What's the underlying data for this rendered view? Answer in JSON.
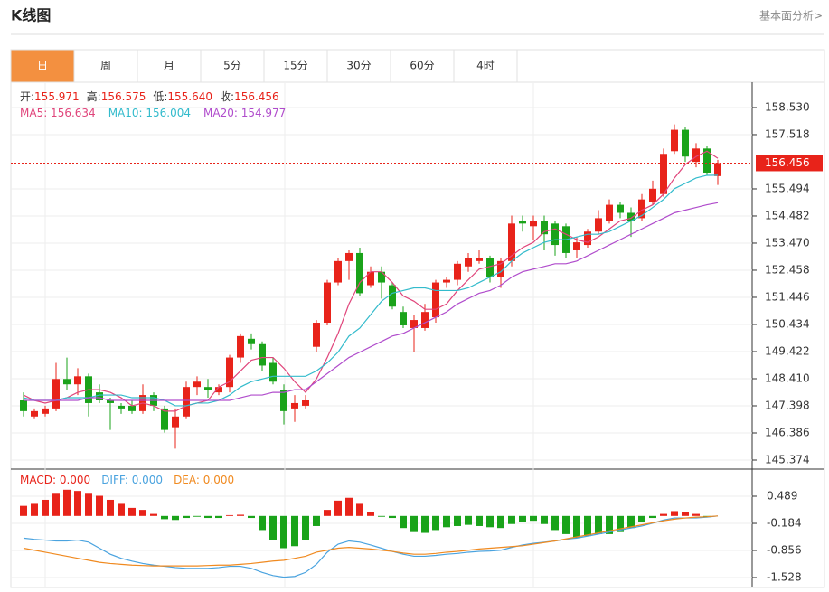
{
  "header": {
    "title": "K线图",
    "link": "基本面分析>"
  },
  "tabs": [
    "日",
    "周",
    "月",
    "5分",
    "15分",
    "30分",
    "60分",
    "4时"
  ],
  "active_tab": 0,
  "chart_data": [
    {
      "type": "candlestick",
      "info": [
        {
          "label": "开:",
          "text": "155.971"
        },
        {
          "label": "高:",
          "text": "156.575"
        },
        {
          "label": "低:",
          "text": "155.640"
        },
        {
          "label": "收:",
          "text": "156.456"
        }
      ],
      "up_color": "#e8231a",
      "down_color": "#1aa31a",
      "open": [
        147.6,
        147.0,
        147.1,
        147.3,
        148.4,
        148.2,
        148.5,
        147.9,
        147.6,
        147.4,
        147.4,
        147.2,
        147.8,
        147.3,
        146.6,
        147.0,
        148.1,
        148.1,
        147.9,
        148.1,
        149.2,
        149.9,
        149.7,
        149.0,
        148.0,
        147.3,
        147.4,
        149.6,
        150.5,
        152.0,
        152.8,
        153.1,
        151.9,
        152.4,
        151.9,
        150.9,
        150.3,
        150.3,
        150.7,
        152.0,
        152.1,
        152.6,
        152.8,
        152.9,
        152.2,
        152.8,
        154.3,
        154.1,
        154.3,
        154.2,
        154.1,
        153.2,
        153.4,
        153.9,
        154.3,
        154.9,
        154.6,
        154.4,
        155.0,
        155.3,
        156.9,
        157.7,
        156.5,
        157.0,
        155.971
      ],
      "high": [
        147.9,
        147.3,
        147.4,
        149.0,
        149.2,
        148.8,
        148.6,
        148.2,
        147.7,
        147.5,
        147.6,
        148.2,
        147.9,
        147.4,
        147.3,
        148.3,
        148.5,
        148.4,
        148.2,
        149.3,
        150.1,
        150.1,
        149.8,
        149.2,
        148.2,
        147.8,
        147.8,
        150.6,
        152.1,
        152.9,
        153.2,
        153.3,
        152.6,
        152.6,
        152.0,
        151.1,
        150.8,
        151.2,
        152.1,
        152.2,
        152.8,
        153.1,
        153.2,
        153.0,
        152.9,
        154.5,
        154.5,
        154.5,
        154.5,
        154.3,
        154.2,
        153.7,
        154.0,
        154.7,
        155.1,
        155.0,
        154.8,
        155.3,
        155.8,
        157.0,
        157.9,
        157.8,
        157.2,
        157.1,
        156.575
      ],
      "low": [
        147.0,
        146.9,
        147.0,
        147.2,
        148.0,
        147.8,
        147.0,
        147.5,
        146.5,
        147.1,
        147.1,
        147.1,
        147.2,
        146.4,
        145.8,
        146.9,
        147.8,
        147.7,
        147.8,
        147.9,
        149.0,
        149.5,
        148.7,
        148.2,
        146.7,
        146.8,
        147.3,
        149.4,
        150.4,
        151.9,
        152.1,
        151.5,
        151.8,
        151.4,
        151.0,
        150.3,
        149.4,
        150.2,
        150.5,
        151.8,
        151.9,
        152.4,
        152.7,
        152.0,
        151.8,
        152.6,
        153.9,
        153.6,
        153.2,
        153.0,
        152.9,
        152.9,
        153.3,
        153.8,
        154.2,
        154.4,
        153.7,
        154.3,
        154.9,
        155.2,
        156.8,
        156.5,
        156.3,
        156.0,
        155.64
      ],
      "close": [
        147.2,
        147.2,
        147.3,
        148.4,
        148.2,
        148.5,
        147.5,
        147.6,
        147.5,
        147.3,
        147.2,
        147.8,
        147.4,
        146.5,
        147.0,
        148.1,
        148.3,
        148.0,
        148.1,
        149.2,
        150.0,
        149.7,
        148.9,
        148.3,
        147.2,
        147.5,
        147.6,
        150.5,
        152.0,
        152.8,
        153.1,
        151.6,
        152.4,
        152.0,
        151.1,
        150.4,
        150.6,
        150.9,
        152.0,
        152.1,
        152.7,
        152.9,
        152.9,
        152.2,
        152.8,
        154.2,
        154.2,
        154.3,
        153.8,
        153.4,
        153.1,
        153.5,
        153.9,
        154.4,
        154.9,
        154.6,
        154.3,
        155.1,
        155.5,
        156.8,
        157.7,
        156.7,
        157.0,
        156.1,
        156.456
      ],
      "series": [
        {
          "name": "MA5: 156.634",
          "color": "#e0457b",
          "values": [
            147.8,
            147.6,
            147.5,
            147.6,
            147.7,
            147.9,
            148.0,
            148.0,
            147.9,
            147.7,
            147.4,
            147.5,
            147.4,
            147.2,
            147.2,
            147.4,
            147.5,
            147.6,
            148.1,
            148.3,
            148.7,
            149.1,
            149.2,
            149.2,
            148.8,
            148.3,
            147.9,
            148.4,
            149.2,
            150.1,
            151.2,
            152.0,
            152.4,
            152.4,
            152.0,
            151.5,
            151.3,
            151.0,
            151.0,
            151.2,
            151.7,
            152.1,
            152.5,
            152.6,
            152.7,
            153.0,
            153.3,
            153.5,
            153.9,
            154.0,
            153.8,
            153.6,
            153.5,
            153.7,
            154.0,
            154.3,
            154.4,
            154.7,
            154.9,
            155.3,
            155.9,
            156.4,
            156.7,
            156.9,
            156.634
          ]
        },
        {
          "name": "MA10: 156.004",
          "color": "#33bbcc",
          "values": [
            147.7,
            147.6,
            147.6,
            147.6,
            147.7,
            147.7,
            147.7,
            147.8,
            147.8,
            147.8,
            147.7,
            147.7,
            147.7,
            147.6,
            147.4,
            147.4,
            147.5,
            147.5,
            147.6,
            147.8,
            148.1,
            148.3,
            148.4,
            148.5,
            148.5,
            148.5,
            148.5,
            148.7,
            149.0,
            149.4,
            150.0,
            150.3,
            150.8,
            151.3,
            151.6,
            151.7,
            151.8,
            151.8,
            151.7,
            151.7,
            151.7,
            151.8,
            152.0,
            152.2,
            152.4,
            152.8,
            153.1,
            153.3,
            153.5,
            153.6,
            153.6,
            153.7,
            153.8,
            153.8,
            153.9,
            154.1,
            154.3,
            154.5,
            154.8,
            155.1,
            155.5,
            155.7,
            155.9,
            156.0,
            156.004
          ]
        },
        {
          "name": "MA20: 154.977",
          "color": "#b04ccc",
          "values": [
            147.6,
            147.6,
            147.6,
            147.6,
            147.6,
            147.6,
            147.7,
            147.7,
            147.6,
            147.6,
            147.6,
            147.6,
            147.6,
            147.6,
            147.6,
            147.6,
            147.6,
            147.6,
            147.6,
            147.6,
            147.7,
            147.8,
            147.8,
            147.9,
            147.9,
            148.0,
            148.0,
            148.3,
            148.6,
            148.9,
            149.2,
            149.4,
            149.6,
            149.8,
            150.0,
            150.1,
            150.3,
            150.5,
            150.7,
            150.9,
            151.2,
            151.4,
            151.6,
            151.7,
            151.9,
            152.2,
            152.4,
            152.5,
            152.6,
            152.7,
            152.7,
            152.8,
            153.0,
            153.2,
            153.4,
            153.6,
            153.8,
            154.0,
            154.2,
            154.4,
            154.6,
            154.7,
            154.8,
            154.9,
            154.977
          ]
        }
      ],
      "last_price": 156.456,
      "ylim": [
        145.07,
        159.44
      ],
      "yticks": [
        {
          "value": 158.53,
          "label": "158.530"
        },
        157.518,
        155.494,
        154.482,
        {
          "value": 153.47,
          "label": "153.470"
        },
        152.458,
        151.446,
        150.434,
        149.422,
        {
          "value": 148.41,
          "label": "148.410"
        },
        147.398,
        146.386,
        145.374
      ],
      "grid": true
    },
    {
      "type": "macd",
      "up_color": "#e8231a",
      "down_color": "#1aa31a",
      "bars": {
        "name": "MACD: 0.000",
        "color": "#e8231a",
        "values": [
          0.25,
          0.3,
          0.4,
          0.55,
          0.65,
          0.62,
          0.55,
          0.5,
          0.4,
          0.3,
          0.2,
          0.15,
          0.05,
          -0.08,
          -0.1,
          -0.05,
          -0.02,
          -0.05,
          -0.05,
          0.02,
          0.03,
          -0.05,
          -0.35,
          -0.6,
          -0.8,
          -0.75,
          -0.6,
          -0.25,
          0.15,
          0.38,
          0.45,
          0.3,
          0.1,
          -0.02,
          -0.05,
          -0.3,
          -0.4,
          -0.42,
          -0.35,
          -0.28,
          -0.25,
          -0.22,
          -0.25,
          -0.28,
          -0.3,
          -0.2,
          -0.15,
          -0.12,
          -0.2,
          -0.35,
          -0.45,
          -0.55,
          -0.5,
          -0.45,
          -0.45,
          -0.4,
          -0.3,
          -0.15,
          -0.05,
          0.05,
          0.12,
          0.1,
          0.05,
          -0.03,
          0
        ]
      },
      "series": [
        {
          "name": "DIFF: 0.000",
          "color": "#4aa3df",
          "values": [
            -0.55,
            -0.58,
            -0.6,
            -0.62,
            -0.62,
            -0.6,
            -0.65,
            -0.8,
            -0.95,
            -1.05,
            -1.12,
            -1.18,
            -1.22,
            -1.25,
            -1.28,
            -1.3,
            -1.3,
            -1.3,
            -1.28,
            -1.25,
            -1.25,
            -1.3,
            -1.4,
            -1.48,
            -1.52,
            -1.5,
            -1.4,
            -1.2,
            -0.9,
            -0.7,
            -0.62,
            -0.65,
            -0.72,
            -0.8,
            -0.88,
            -0.95,
            -1.0,
            -1.0,
            -0.98,
            -0.95,
            -0.93,
            -0.9,
            -0.88,
            -0.87,
            -0.85,
            -0.78,
            -0.72,
            -0.68,
            -0.65,
            -0.62,
            -0.58,
            -0.55,
            -0.5,
            -0.45,
            -0.4,
            -0.35,
            -0.3,
            -0.25,
            -0.18,
            -0.1,
            -0.05,
            -0.05,
            -0.05,
            -0.03,
            0
          ]
        },
        {
          "name": "DEA: 0.000",
          "color": "#f08a20",
          "values": [
            -0.8,
            -0.85,
            -0.9,
            -0.95,
            -1.0,
            -1.05,
            -1.1,
            -1.15,
            -1.18,
            -1.2,
            -1.22,
            -1.23,
            -1.24,
            -1.24,
            -1.24,
            -1.24,
            -1.24,
            -1.23,
            -1.22,
            -1.22,
            -1.2,
            -1.18,
            -1.15,
            -1.12,
            -1.1,
            -1.05,
            -1.0,
            -0.9,
            -0.85,
            -0.8,
            -0.78,
            -0.8,
            -0.82,
            -0.85,
            -0.88,
            -0.92,
            -0.95,
            -0.95,
            -0.93,
            -0.9,
            -0.88,
            -0.85,
            -0.82,
            -0.8,
            -0.78,
            -0.76,
            -0.74,
            -0.7,
            -0.66,
            -0.62,
            -0.57,
            -0.52,
            -0.47,
            -0.42,
            -0.37,
            -0.32,
            -0.27,
            -0.22,
            -0.17,
            -0.12,
            -0.08,
            -0.05,
            -0.03,
            -0.02,
            0
          ]
        }
      ],
      "ylim": [
        -1.775,
        1.139
      ],
      "yticks": [
        0.489,
        -0.184,
        -0.856,
        -1.528
      ],
      "grid": true
    }
  ]
}
